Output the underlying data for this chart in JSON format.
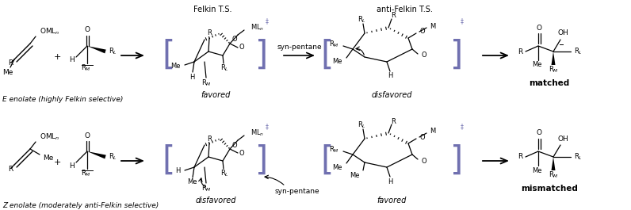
{
  "bg_color": "#ffffff",
  "fig_width": 7.96,
  "fig_height": 2.65,
  "dpi": 100,
  "labels": {
    "felkin_ts": "Felkin T.S.",
    "anti_felkin_ts": "anti-Felkin T.S.",
    "syn_pentane": "syn-pentane",
    "favored_top": "favored",
    "disfavored_top": "disfavored",
    "disfavored_bottom": "disfavored",
    "favored_bottom": "favored",
    "matched": "matched",
    "mismatched": "mismatched",
    "e_enolate": "E enolate (highly Felkin selective)",
    "z_enolate": "Z enolate (moderately anti-Felkin selective)"
  }
}
